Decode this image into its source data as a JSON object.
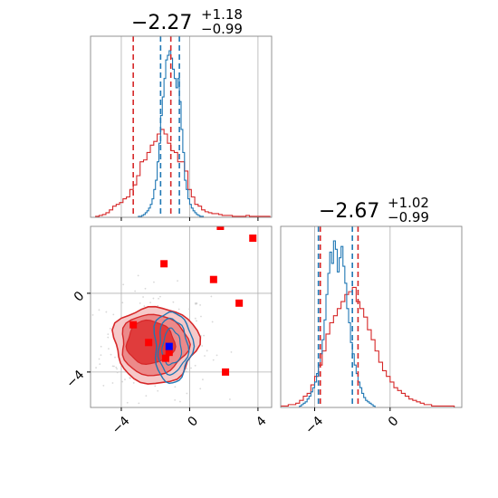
{
  "chart_data": {
    "type": "corner",
    "parameters": [
      {
        "title_main": "−2.27",
        "title_sup": "+1.18",
        "title_sub": "−0.99"
      },
      {
        "title_main": "−2.67",
        "title_sup": "+1.02",
        "title_sub": "−0.99"
      }
    ],
    "colors": {
      "red": "#d62728",
      "blue": "#1f77b4",
      "grid": "#b0b0b0",
      "fill_dark": "#e03c3c",
      "fill_mid": "#ec8a8a",
      "fill_light": "#f6c9c9"
    },
    "grid": true,
    "x_ticks": [
      {
        "value": -4,
        "label": "−4"
      },
      {
        "value": 0,
        "label": "0"
      },
      {
        "value": 4,
        "label": "4"
      }
    ],
    "y_ticks": [
      {
        "value": 0,
        "label": "0"
      },
      {
        "value": -4,
        "label": "−4"
      }
    ],
    "x2_ticks": [
      {
        "value": -4,
        "label": "−4"
      },
      {
        "value": 0,
        "label": "0"
      }
    ],
    "xlim": [
      -5.8,
      4.8
    ],
    "ylim": [
      -5.8,
      3.4
    ],
    "x2lim": [
      -5.8,
      3.8
    ],
    "hist1_red_quantiles": [
      -3.3,
      -1.1
    ],
    "hist1_blue_quantiles": [
      -1.7,
      -0.6
    ],
    "hist2_red_quantiles": [
      -3.7,
      -1.7
    ],
    "hist2_blue_quantiles": [
      -3.8,
      -2.0
    ],
    "hist1_red": {
      "x0": -5.5,
      "dx": 0.2,
      "counts": [
        1,
        2,
        3,
        5,
        8,
        12,
        14,
        16,
        20,
        22,
        30,
        35,
        45,
        60,
        62,
        70,
        78,
        82,
        90,
        95,
        90,
        80,
        72,
        70,
        60,
        60,
        50,
        30,
        22,
        14,
        12,
        8,
        6,
        5,
        4,
        4,
        3,
        2,
        2,
        2,
        1,
        1,
        1,
        1,
        2,
        1,
        1,
        1,
        1,
        1,
        1,
        0,
        1,
        0,
        0,
        0
      ]
    },
    "hist1_blue": {
      "x0": -3.0,
      "dx": 0.1,
      "counts": [
        1,
        1,
        2,
        3,
        5,
        7,
        10,
        14,
        20,
        30,
        40,
        60,
        80,
        110,
        130,
        150,
        170,
        175,
        180,
        172,
        160,
        150,
        140,
        150,
        125,
        95,
        70,
        40,
        30,
        20,
        14,
        10,
        7,
        5,
        3,
        2,
        1,
        1
      ]
    },
    "hist2_red": {
      "x0": -5.8,
      "dx": 0.2,
      "counts": [
        1,
        1,
        2,
        2,
        3,
        5,
        8,
        10,
        16,
        22,
        30,
        40,
        52,
        60,
        65,
        70,
        75,
        80,
        82,
        85,
        75,
        70,
        64,
        55,
        48,
        40,
        32,
        26,
        22,
        18,
        14,
        12,
        10,
        8,
        6,
        5,
        4,
        3,
        2,
        2,
        1,
        1,
        1,
        1,
        1,
        1
      ]
    },
    "hist2_blue": {
      "x0": -4.8,
      "dx": 0.1,
      "counts": [
        1,
        2,
        3,
        4,
        6,
        8,
        11,
        14,
        18,
        24,
        30,
        38,
        48,
        62,
        80,
        95,
        110,
        102,
        118,
        112,
        96,
        106,
        114,
        100,
        88,
        70,
        60,
        46,
        38,
        30,
        24,
        18,
        14,
        10,
        7,
        5,
        4,
        3,
        2,
        1
      ]
    },
    "red_points": [
      [
        -3.3,
        -1.6
      ],
      [
        -2.4,
        -2.5
      ],
      [
        -1.4,
        -3.3
      ],
      [
        -1.2,
        -3.0
      ],
      [
        -1.5,
        1.5
      ],
      [
        1.4,
        0.7
      ],
      [
        1.8,
        3.4
      ],
      [
        3.7,
        2.8
      ],
      [
        2.9,
        -0.5
      ],
      [
        2.1,
        -4.0
      ]
    ],
    "blue_points": [
      [
        -1.2,
        -2.7
      ]
    ]
  }
}
